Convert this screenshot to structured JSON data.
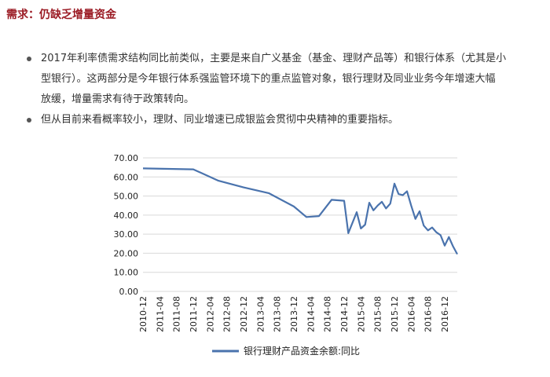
{
  "heading": "需求：仍缺乏增量资金",
  "bullets": [
    {
      "lines": [
        "2017年利率债需求结构同比前类似，主要是来自广义基金（基金、理财产品等）和银行体系（尤其是小",
        "型银行）。这两部分是今年银行体系强监管环境下的重点监管对象，银行理财及同业业务今年增速大幅",
        "放缓，增量需求有待于政策转向。"
      ]
    },
    {
      "lines": [
        "但从目前来看概率较小，理财、同业增速已成银监会贯彻中央精神的重要指标。"
      ]
    }
  ],
  "colors": {
    "heading": "#9b1b24",
    "line": "#4a73ad",
    "grid": "#d9d9d9"
  },
  "chart_data": {
    "type": "line",
    "title": "",
    "xlabel": "",
    "ylabel": "",
    "ylim": [
      0,
      70
    ],
    "yticks": [
      "70.00",
      "60.00",
      "50.00",
      "40.00",
      "30.00",
      "20.00",
      "10.00",
      "0.00"
    ],
    "xticks": [
      "2010-12",
      "2011-04",
      "2011-08",
      "2011-12",
      "2012-04",
      "2012-08",
      "2012-12",
      "2013-04",
      "2013-08",
      "2013-12",
      "2014-04",
      "2014-08",
      "2014-12",
      "2015-04",
      "2015-08",
      "2015-12",
      "2016-04",
      "2016-08",
      "2016-12"
    ],
    "grid": true,
    "legend": "bottom",
    "series": [
      {
        "name": "银行理财产品资金余额:同比",
        "points": [
          [
            "2010-12",
            64.5
          ],
          [
            "2011-12",
            64.0
          ],
          [
            "2012-06",
            58.0
          ],
          [
            "2012-12",
            54.5
          ],
          [
            "2013-06",
            51.5
          ],
          [
            "2013-12",
            44.5
          ],
          [
            "2014-03",
            39.0
          ],
          [
            "2014-06",
            39.5
          ],
          [
            "2014-09",
            48.0
          ],
          [
            "2014-12",
            47.5
          ],
          [
            "2015-01",
            30.5
          ],
          [
            "2015-03",
            41.5
          ],
          [
            "2015-04",
            33.0
          ],
          [
            "2015-05",
            35.0
          ],
          [
            "2015-06",
            46.5
          ],
          [
            "2015-07",
            42.5
          ],
          [
            "2015-08",
            45.0
          ],
          [
            "2015-09",
            47.0
          ],
          [
            "2015-10",
            43.5
          ],
          [
            "2015-11",
            46.0
          ],
          [
            "2015-12",
            56.5
          ],
          [
            "2016-01",
            51.0
          ],
          [
            "2016-02",
            50.5
          ],
          [
            "2016-03",
            52.5
          ],
          [
            "2016-04",
            45.0
          ],
          [
            "2016-05",
            38.0
          ],
          [
            "2016-06",
            42.0
          ],
          [
            "2016-07",
            34.5
          ],
          [
            "2016-08",
            32.0
          ],
          [
            "2016-09",
            33.5
          ],
          [
            "2016-10",
            31.0
          ],
          [
            "2016-11",
            29.5
          ],
          [
            "2016-12",
            24.0
          ],
          [
            "2017-01",
            28.5
          ],
          [
            "2017-02",
            23.5
          ],
          [
            "2017-03",
            19.5
          ]
        ]
      }
    ]
  }
}
